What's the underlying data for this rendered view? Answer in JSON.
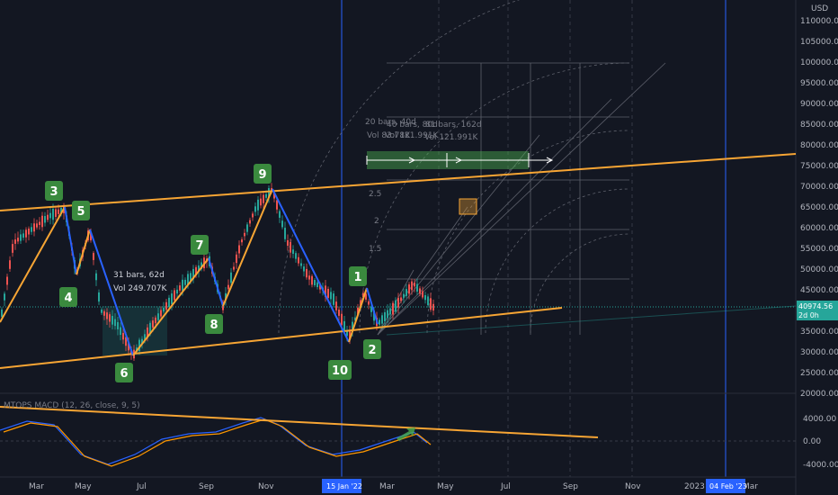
{
  "price_axis": {
    "currency": "USD",
    "ticks": [
      "110000.00",
      "105000.00",
      "100000.00",
      "95000.00",
      "90000.00",
      "85000.00",
      "80000.00",
      "75000.00",
      "70000.00",
      "65000.00",
      "60000.00",
      "55000.00",
      "50000.00",
      "45000.00",
      "40000.00",
      "35000.00",
      "30000.00",
      "25000.00",
      "20000.00"
    ],
    "current_price": "40974.56",
    "countdown": "2d 0h"
  },
  "macd_axis": {
    "ticks": [
      "4000.00",
      "0.00",
      "-4000.00"
    ]
  },
  "indicator_label": "MTOPS MACD (12, 26, close, 9, 5)",
  "time_axis": {
    "ticks": [
      "Mar",
      "May",
      "Jul",
      "Sep",
      "Nov",
      "Mar",
      "May",
      "Jul",
      "Sep",
      "Nov",
      "2023",
      "Mar"
    ],
    "highlight_left": "15 Jan '22",
    "highlight_right": "04 Feb '23"
  },
  "wave_labels": [
    "1",
    "2",
    "3",
    "4",
    "5",
    "6",
    "7",
    "8",
    "9",
    "10",
    "1",
    "2"
  ],
  "annotations": {
    "range_left": {
      "line1": "31 bars, 62d",
      "line2": "Vol 249.707K"
    },
    "range_a": {
      "line1": "20 bars, 40d",
      "line2": "Vol 83.78K"
    },
    "range_b": {
      "line1": "40 bars, 80d",
      "line2": "Vol 121.991K"
    },
    "range_c": {
      "line1": "81 bars, 162d",
      "line2": "Vol 121.991K"
    },
    "fib_levels": [
      "2.5",
      "2",
      "1.5"
    ]
  },
  "colors": {
    "background": "#131722",
    "trendline": "#f7a534",
    "wave_up": "#f7a534",
    "wave_down": "#2962ff",
    "label_bg": "#3a8a3e",
    "candle_up": "#26a69a",
    "candle_down": "#ef5350",
    "macd": "#2962ff",
    "signal": "#ff9800",
    "vline": "#2962ff"
  },
  "chart_data": {
    "type": "candlestick",
    "symbol_unit": "USD",
    "y_range": [
      20000,
      112000
    ],
    "wave_points": [
      {
        "label": "3",
        "price": 65000
      },
      {
        "label": "4",
        "price": 47000
      },
      {
        "label": "5",
        "price": 60000
      },
      {
        "label": "6",
        "price": 30000
      },
      {
        "label": "7",
        "price": 53000
      },
      {
        "label": "8",
        "price": 39000
      },
      {
        "label": "9",
        "price": 69000
      },
      {
        "label": "10",
        "price": 33000
      },
      {
        "label": "1",
        "price": 45000
      },
      {
        "label": "2",
        "price": 35000
      }
    ],
    "macd_range": [
      -5000,
      5000
    ]
  }
}
